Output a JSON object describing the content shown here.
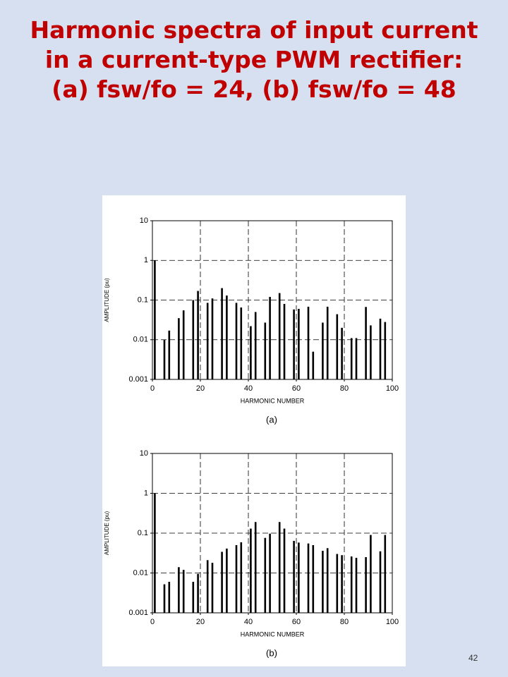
{
  "slide": {
    "title": "Harmonic spectra of input current in a current-type PWM rectifier: (a) fsw/fo = 24, (b) fsw/fo = 48",
    "page_number": "42"
  },
  "chart_data": [
    {
      "type": "bar",
      "caption": "(a)",
      "x_label": "HARMONIC NUMBER",
      "y_label": "AMPLITUDE (pu)",
      "log_y": true,
      "grid": true,
      "color": "#000000",
      "x": [
        1,
        5,
        7,
        11,
        13,
        17,
        19,
        23,
        25,
        29,
        31,
        35,
        37,
        41,
        43,
        47,
        49,
        53,
        55,
        59,
        61,
        65,
        67,
        71,
        73,
        77,
        79,
        83,
        85,
        89,
        91,
        95,
        97
      ],
      "values": [
        1,
        0.01,
        0.017,
        0.035,
        0.055,
        0.1,
        0.17,
        0.085,
        0.11,
        0.2,
        0.13,
        0.085,
        0.065,
        0.022,
        0.05,
        0.027,
        0.12,
        0.15,
        0.08,
        0.058,
        0.06,
        0.068,
        0.005,
        0.027,
        0.068,
        0.044,
        0.02,
        0.011,
        0.011,
        0.067,
        0.023,
        0.034,
        0.028
      ],
      "xlim": [
        0,
        100
      ],
      "xticks": [
        0,
        20,
        40,
        60,
        80,
        100
      ],
      "ylim": [
        0.001,
        10
      ],
      "yticks": [
        0.001,
        0.01,
        0.1,
        1,
        10
      ]
    },
    {
      "type": "bar",
      "caption": "(b)",
      "x_label": "HARMONIC NUMBER",
      "y_label": "AMPLITUDE (pu)",
      "log_y": true,
      "grid": true,
      "color": "#000000",
      "x": [
        1,
        5,
        7,
        11,
        13,
        17,
        19,
        23,
        25,
        29,
        31,
        35,
        37,
        41,
        43,
        47,
        49,
        53,
        55,
        59,
        61,
        65,
        67,
        71,
        73,
        77,
        79,
        83,
        85,
        89,
        91,
        95,
        97
      ],
      "values": [
        1,
        0.0052,
        0.006,
        0.014,
        0.012,
        0.006,
        0.0095,
        0.021,
        0.018,
        0.034,
        0.041,
        0.05,
        0.059,
        0.13,
        0.19,
        0.076,
        0.097,
        0.19,
        0.13,
        0.064,
        0.058,
        0.055,
        0.05,
        0.036,
        0.042,
        0.03,
        0.028,
        0.026,
        0.024,
        0.025,
        0.09,
        0.035,
        0.09
      ],
      "xlim": [
        0,
        100
      ],
      "xticks": [
        0,
        20,
        40,
        60,
        80,
        100
      ],
      "ylim": [
        0.001,
        10
      ],
      "yticks": [
        0.001,
        0.01,
        0.1,
        1,
        10
      ]
    }
  ]
}
